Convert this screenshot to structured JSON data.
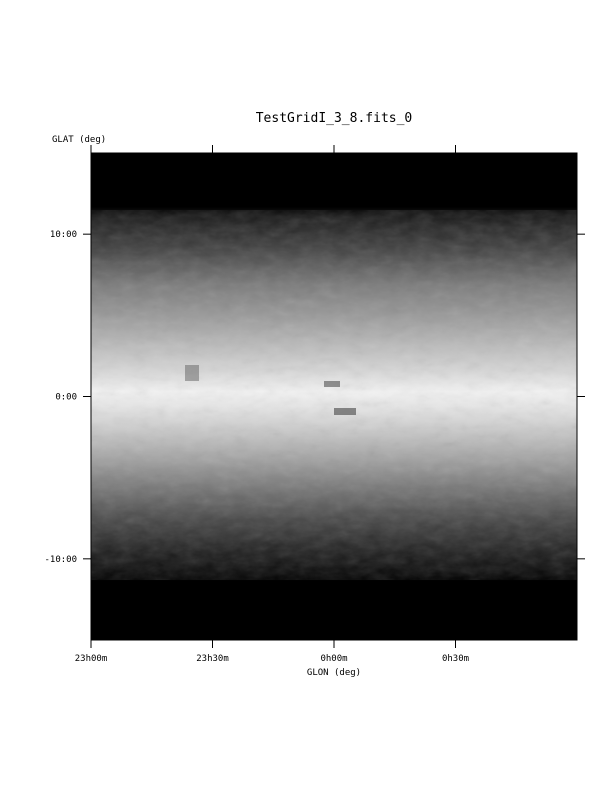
{
  "chart_data": {
    "type": "heatmap",
    "title": "TestGridI_3_8.fits_0",
    "xlabel": "GLON (deg)",
    "ylabel": "GLAT (deg)",
    "x_ticks": [
      {
        "label": "23h00m",
        "value": 345.0
      },
      {
        "label": "23h30m",
        "value": 352.5
      },
      {
        "label": "0h00m",
        "value": 0.0
      },
      {
        "label": "0h30m",
        "value": 7.5
      }
    ],
    "y_ticks": [
      {
        "label": "10:00",
        "value": 10
      },
      {
        "label": "0:00",
        "value": 0
      },
      {
        "label": "-10:00",
        "value": -10
      }
    ],
    "xlim": [
      345.0,
      15.0
    ],
    "ylim": [
      -15,
      15
    ],
    "colormap": "grayscale",
    "color_scale": {
      "low": "#000000",
      "high": "#ffffff"
    },
    "grid": false,
    "description_profile": {
      "lat": [
        -15,
        -11.5,
        -9,
        -6,
        -3,
        -1,
        0,
        1,
        3,
        6,
        9,
        11.5,
        15
      ],
      "intensity": [
        0.0,
        0.1,
        0.3,
        0.55,
        0.75,
        0.9,
        0.97,
        0.9,
        0.75,
        0.55,
        0.3,
        0.1,
        0.0
      ]
    }
  }
}
